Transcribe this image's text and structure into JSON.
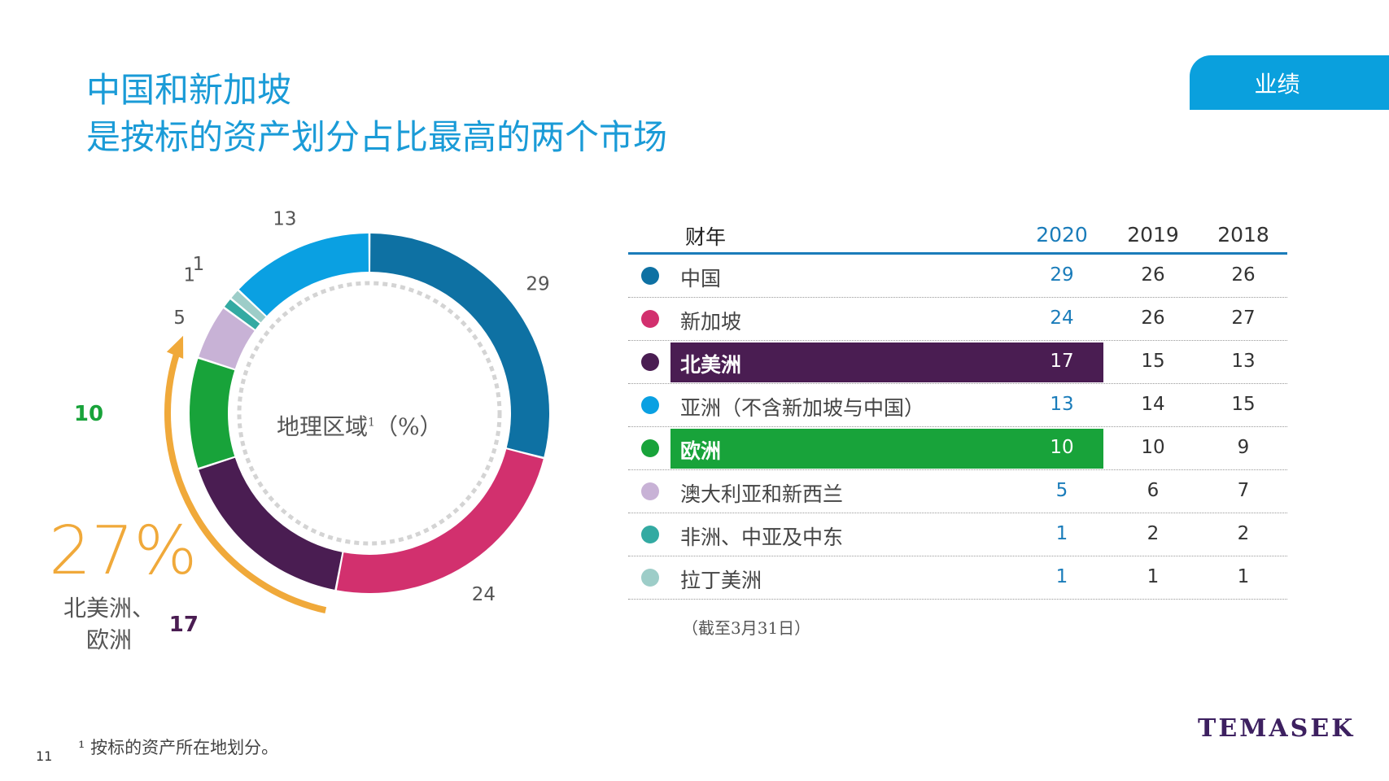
{
  "title": {
    "line1": "中国和新加坡",
    "line2": "是按标的资产划分占比最高的两个市场"
  },
  "tag": "业绩",
  "donut": {
    "center_label": "地理区域",
    "center_sup": "1",
    "center_unit": "（%）",
    "highlight_value": "27%",
    "highlight_label_line1": "北美洲、",
    "highlight_label_line2": "欧洲",
    "arrow_color": "#f0a93a"
  },
  "chart_data": {
    "type": "pie",
    "style": "donut",
    "title": "地理区域¹（%）",
    "slices": [
      {
        "label": "中国",
        "value": 29,
        "color": "#0e71a3",
        "value_label": "29",
        "label_color": "#555555"
      },
      {
        "label": "新加坡",
        "value": 24,
        "color": "#d2306e",
        "value_label": "24",
        "label_color": "#555555"
      },
      {
        "label": "北美洲",
        "value": 17,
        "color": "#4a1d52",
        "value_label": "17",
        "label_color": "#4a1d52"
      },
      {
        "label": "欧洲",
        "value": 10,
        "color": "#18a33a",
        "value_label": "10",
        "label_color": "#18a33a"
      },
      {
        "label": "澳大利亚和新西兰",
        "value": 5,
        "color": "#c8b2d6",
        "value_label": "5",
        "label_color": "#555555"
      },
      {
        "label": "非洲、中亚及中东",
        "value": 1,
        "color": "#33aaa2",
        "value_label": "1",
        "label_color": "#555555"
      },
      {
        "label": "拉丁美洲",
        "value": 1,
        "color": "#9dcdc8",
        "value_label": "1",
        "label_color": "#555555"
      },
      {
        "label": "亚洲（不含新加坡与中国）",
        "value": 13,
        "color": "#0aa0e2",
        "value_label": "13",
        "label_color": "#555555"
      }
    ]
  },
  "table": {
    "header": {
      "fy": "财年",
      "y2020": "2020",
      "y2019": "2019",
      "y2018": "2018"
    },
    "rows": [
      {
        "label": "中国",
        "color": "#0e71a3",
        "v2020": "29",
        "v2019": "26",
        "v2018": "26"
      },
      {
        "label": "新加坡",
        "color": "#d2306e",
        "v2020": "24",
        "v2019": "26",
        "v2018": "27"
      },
      {
        "label": "北美洲",
        "color": "#4a1d52",
        "v2020": "17",
        "v2019": "15",
        "v2018": "13",
        "highlight": "#4a1d52"
      },
      {
        "label": "亚洲（不含新加坡与中国）",
        "color": "#0aa0e2",
        "v2020": "13",
        "v2019": "14",
        "v2018": "15"
      },
      {
        "label": "欧洲",
        "color": "#18a33a",
        "v2020": "10",
        "v2019": "10",
        "v2018": "9",
        "highlight": "#18a33a"
      },
      {
        "label": "澳大利亚和新西兰",
        "color": "#c8b2d6",
        "v2020": "5",
        "v2019": "6",
        "v2018": "7"
      },
      {
        "label": "非洲、中亚及中东",
        "color": "#33aaa2",
        "v2020": "1",
        "v2019": "2",
        "v2018": "2"
      },
      {
        "label": "拉丁美洲",
        "color": "#9dcdc8",
        "v2020": "1",
        "v2019": "1",
        "v2018": "1"
      }
    ],
    "note": "（截至3月31日）"
  },
  "footnote": "¹ 按标的资产所在地划分。",
  "page_number": "11",
  "logo": "TEMASEK"
}
